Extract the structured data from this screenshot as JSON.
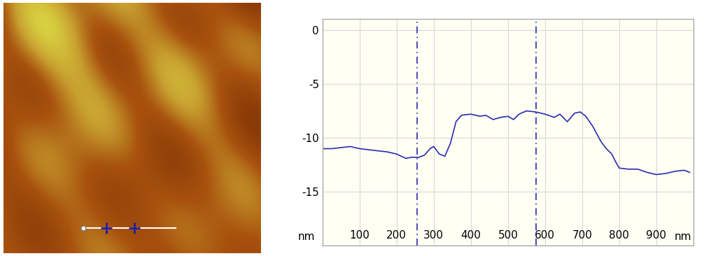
{
  "chart_data": {
    "type": "line",
    "x": [
      0,
      25,
      50,
      75,
      100,
      125,
      150,
      175,
      200,
      225,
      240,
      260,
      275,
      290,
      300,
      315,
      330,
      345,
      360,
      375,
      400,
      425,
      440,
      460,
      480,
      500,
      515,
      530,
      550,
      575,
      600,
      625,
      640,
      660,
      680,
      695,
      710,
      730,
      750,
      765,
      780,
      790,
      800,
      825,
      850,
      875,
      900,
      925,
      950,
      975,
      990
    ],
    "values": [
      -11.0,
      -11.0,
      -10.9,
      -10.8,
      -11.0,
      -11.1,
      -11.2,
      -11.3,
      -11.5,
      -11.9,
      -11.8,
      -11.8,
      -11.6,
      -11.0,
      -10.8,
      -11.5,
      -11.7,
      -10.5,
      -8.5,
      -7.9,
      -7.8,
      -8.0,
      -7.9,
      -8.3,
      -8.1,
      -8.0,
      -8.3,
      -7.8,
      -7.5,
      -7.6,
      -7.8,
      -8.1,
      -7.8,
      -8.5,
      -7.7,
      -7.6,
      -8.0,
      -9.0,
      -10.3,
      -11.0,
      -11.5,
      -12.2,
      -12.8,
      -12.9,
      -12.9,
      -13.2,
      -13.4,
      -13.3,
      -13.1,
      -13.0,
      -13.2
    ],
    "color": "#2a2ab0",
    "xlim": [
      0,
      1000
    ],
    "ylim": [
      -20,
      1
    ],
    "xticks": [
      100,
      200,
      300,
      400,
      500,
      600,
      700,
      800,
      900
    ],
    "yticks": [
      0,
      -5,
      -10,
      -15
    ],
    "x_label": "nm",
    "y_label": "nm",
    "grid": true,
    "cursors": [
      255,
      575
    ]
  }
}
